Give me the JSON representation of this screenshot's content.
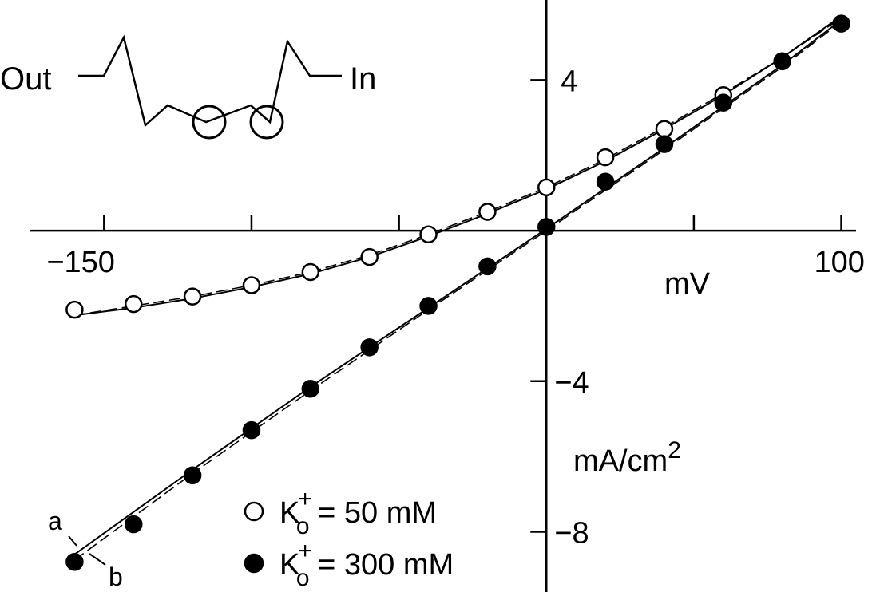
{
  "chart_data": {
    "type": "scatter",
    "xlabel": "mV",
    "ylabel": "mA/cm",
    "ylabel_sup": "2",
    "x_ticks": [
      -150,
      -100,
      -50,
      0,
      50,
      100
    ],
    "x_tick_labels": [
      "−150",
      "100"
    ],
    "y_ticks": [
      -8,
      -4,
      0,
      4
    ],
    "y_tick_labels": [
      "−8",
      "−4",
      "4"
    ],
    "xlim": [
      -175,
      105
    ],
    "ylim": [
      -9.6,
      6.0
    ],
    "grid": false,
    "legend_position": "bottom-center",
    "series": [
      {
        "name": "K",
        "name_sub": "o",
        "name_sup": "+",
        "name_rest": " = 50 mM",
        "marker": "open-circle",
        "x": [
          -160,
          -140,
          -120,
          -100,
          -80,
          -60,
          -40,
          -20,
          0,
          20,
          40,
          60
        ],
        "y": [
          -2.1,
          -1.95,
          -1.75,
          -1.45,
          -1.1,
          -0.7,
          -0.1,
          0.5,
          1.15,
          1.95,
          2.7,
          3.6
        ],
        "fit_a": [
          [
            -160,
            -2.25
          ],
          [
            -140,
            -2.05
          ],
          [
            -120,
            -1.8
          ],
          [
            -100,
            -1.5
          ],
          [
            -80,
            -1.15
          ],
          [
            -60,
            -0.7
          ],
          [
            -40,
            -0.15
          ],
          [
            -20,
            0.45
          ],
          [
            0,
            1.1
          ],
          [
            20,
            1.85
          ],
          [
            40,
            2.7
          ],
          [
            60,
            3.6
          ],
          [
            80,
            4.6
          ],
          [
            100,
            5.7
          ]
        ],
        "fit_b": [
          [
            -160,
            -2.25
          ],
          [
            -140,
            -2.0
          ],
          [
            -120,
            -1.75
          ],
          [
            -100,
            -1.45
          ],
          [
            -80,
            -1.1
          ],
          [
            -60,
            -0.65
          ],
          [
            -40,
            -0.1
          ],
          [
            -20,
            0.5
          ],
          [
            0,
            1.15
          ],
          [
            20,
            1.9
          ],
          [
            40,
            2.75
          ],
          [
            60,
            3.65
          ],
          [
            80,
            4.6
          ],
          [
            100,
            5.65
          ]
        ]
      },
      {
        "name": "K",
        "name_sub": "o",
        "name_sup": "+",
        "name_rest": " = 300 mM",
        "marker": "filled-circle",
        "x": [
          -160,
          -140,
          -120,
          -100,
          -80,
          -60,
          -40,
          -20,
          0,
          20,
          40,
          60,
          80,
          100
        ],
        "y": [
          -8.8,
          -7.8,
          -6.5,
          -5.3,
          -4.2,
          -3.1,
          -2.0,
          -0.95,
          0.1,
          1.3,
          2.3,
          3.4,
          4.5,
          5.5
        ],
        "fit_a": [
          [
            -160,
            -8.6
          ],
          [
            -120,
            -6.35
          ],
          [
            -80,
            -4.15
          ],
          [
            -40,
            -2.05
          ],
          [
            0,
            0.05
          ],
          [
            40,
            2.2
          ],
          [
            80,
            4.4
          ],
          [
            100,
            5.6
          ]
        ],
        "fit_b": [
          [
            -160,
            -8.75
          ],
          [
            -120,
            -6.45
          ],
          [
            -80,
            -4.25
          ],
          [
            -40,
            -2.1
          ],
          [
            0,
            0.0
          ],
          [
            40,
            2.15
          ],
          [
            80,
            4.35
          ],
          [
            100,
            5.55
          ]
        ]
      }
    ],
    "curve_labels": [
      "a",
      "b"
    ],
    "inset_labels": [
      "Out",
      "In"
    ]
  }
}
